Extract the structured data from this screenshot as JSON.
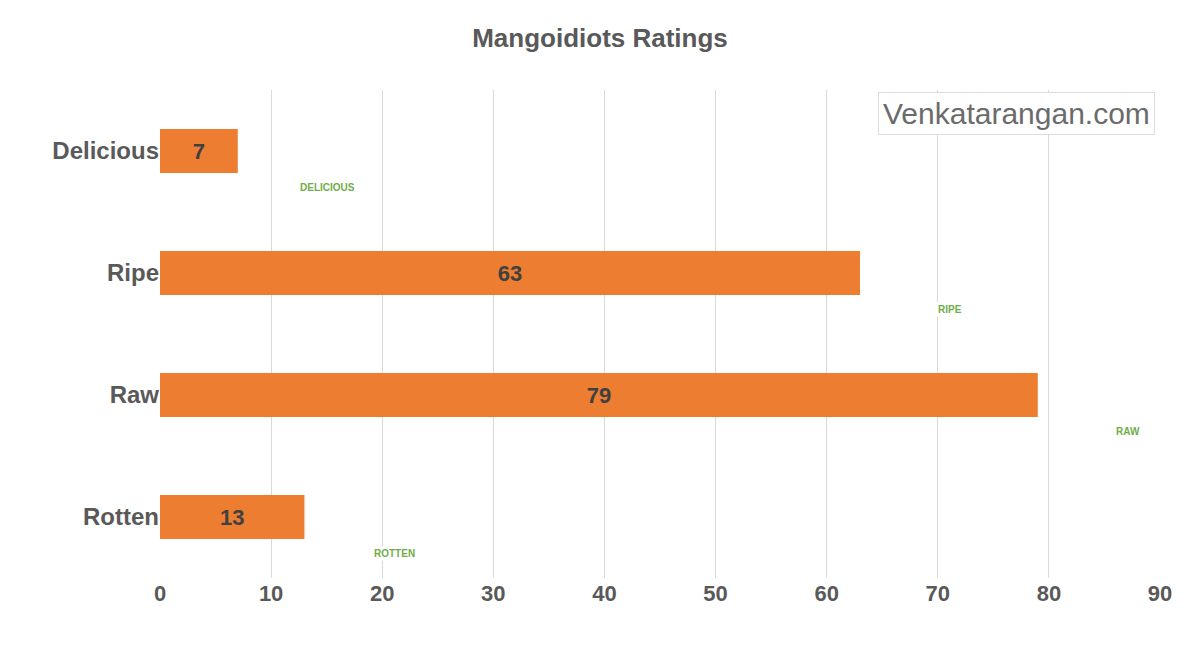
{
  "chart_data": {
    "type": "bar",
    "title": "Mangoidiots Ratings",
    "orientation": "horizontal",
    "categories": [
      "Delicious",
      "Ripe",
      "Raw",
      "Rotten"
    ],
    "values": [
      7,
      63,
      79,
      13
    ],
    "color": "#ed7d31",
    "xlim": [
      0,
      90
    ],
    "xticks": [
      0,
      10,
      20,
      30,
      40,
      50,
      60,
      70,
      80,
      90
    ],
    "grid": true,
    "data_labels": true,
    "annotations": [
      {
        "text": "DELICIOUS",
        "category": "Delicious"
      },
      {
        "text": "RIPE",
        "category": "Ripe"
      },
      {
        "text": "RAW",
        "category": "Raw"
      },
      {
        "text": "ROTTEN",
        "category": "Rotten"
      },
      {
        "text": "Venkatarangan.com"
      }
    ]
  }
}
